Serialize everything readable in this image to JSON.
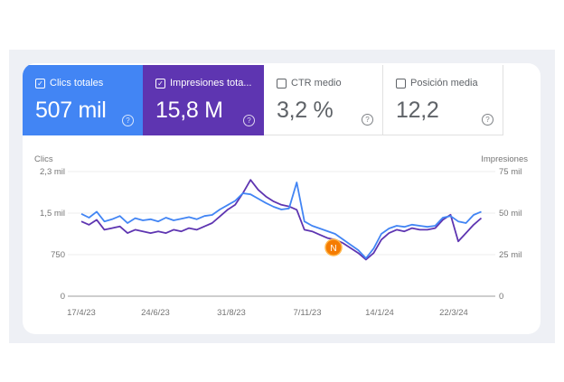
{
  "metrics": [
    {
      "label": "Clics totales",
      "value": "507 mil",
      "checked": true,
      "color": "#4285f4"
    },
    {
      "label": "Impresiones tota...",
      "value": "15,8 M",
      "checked": true,
      "color": "#5e35b1"
    },
    {
      "label": "CTR medio",
      "value": "3,2 %",
      "checked": false
    },
    {
      "label": "Posición media",
      "value": "12,2",
      "checked": false
    }
  ],
  "chart_data": {
    "type": "line",
    "left_axis_title": "Clics",
    "right_axis_title": "Impresiones",
    "left_ticks": [
      "0",
      "750",
      "1,5 mil",
      "2,3 mil"
    ],
    "right_ticks": [
      "0",
      "25 mil",
      "50 mil",
      "75 mil"
    ],
    "left_ylim": [
      0,
      2300
    ],
    "right_ylim": [
      0,
      75000
    ],
    "x_ticks": [
      "17/4/23",
      "24/6/23",
      "31/8/23",
      "7/11/23",
      "14/1/24",
      "22/3/24"
    ],
    "x_range": [
      "17/4/23",
      "15/4/24"
    ],
    "grid": true,
    "series": [
      {
        "name": "Clics totales",
        "axis": "left",
        "color": "#4285f4",
        "values": [
          1520,
          1450,
          1560,
          1380,
          1420,
          1480,
          1350,
          1440,
          1400,
          1420,
          1380,
          1450,
          1400,
          1430,
          1460,
          1420,
          1480,
          1500,
          1600,
          1680,
          1760,
          1900,
          1880,
          1800,
          1720,
          1650,
          1600,
          1620,
          2100,
          1380,
          1300,
          1250,
          1200,
          1150,
          1050,
          950,
          850,
          700,
          880,
          1150,
          1250,
          1300,
          1280,
          1320,
          1300,
          1280,
          1300,
          1450,
          1480,
          1380,
          1350,
          1500,
          1560
        ]
      },
      {
        "name": "Impresiones totales",
        "axis": "right",
        "color": "#5e35b1",
        "values": [
          45000,
          43000,
          46000,
          40000,
          41000,
          42000,
          38000,
          40000,
          39000,
          38000,
          39000,
          38000,
          40000,
          39000,
          41000,
          40000,
          42000,
          44000,
          48000,
          52000,
          55000,
          62000,
          70000,
          64000,
          60000,
          57000,
          55000,
          54000,
          52000,
          40000,
          39000,
          37000,
          35000,
          34000,
          32000,
          29000,
          26000,
          22000,
          26000,
          34000,
          38000,
          40000,
          39000,
          41000,
          40000,
          40000,
          41000,
          46000,
          49000,
          33000,
          38000,
          43000,
          47000
        ]
      }
    ],
    "annotation_icon": "note-marker-icon"
  }
}
